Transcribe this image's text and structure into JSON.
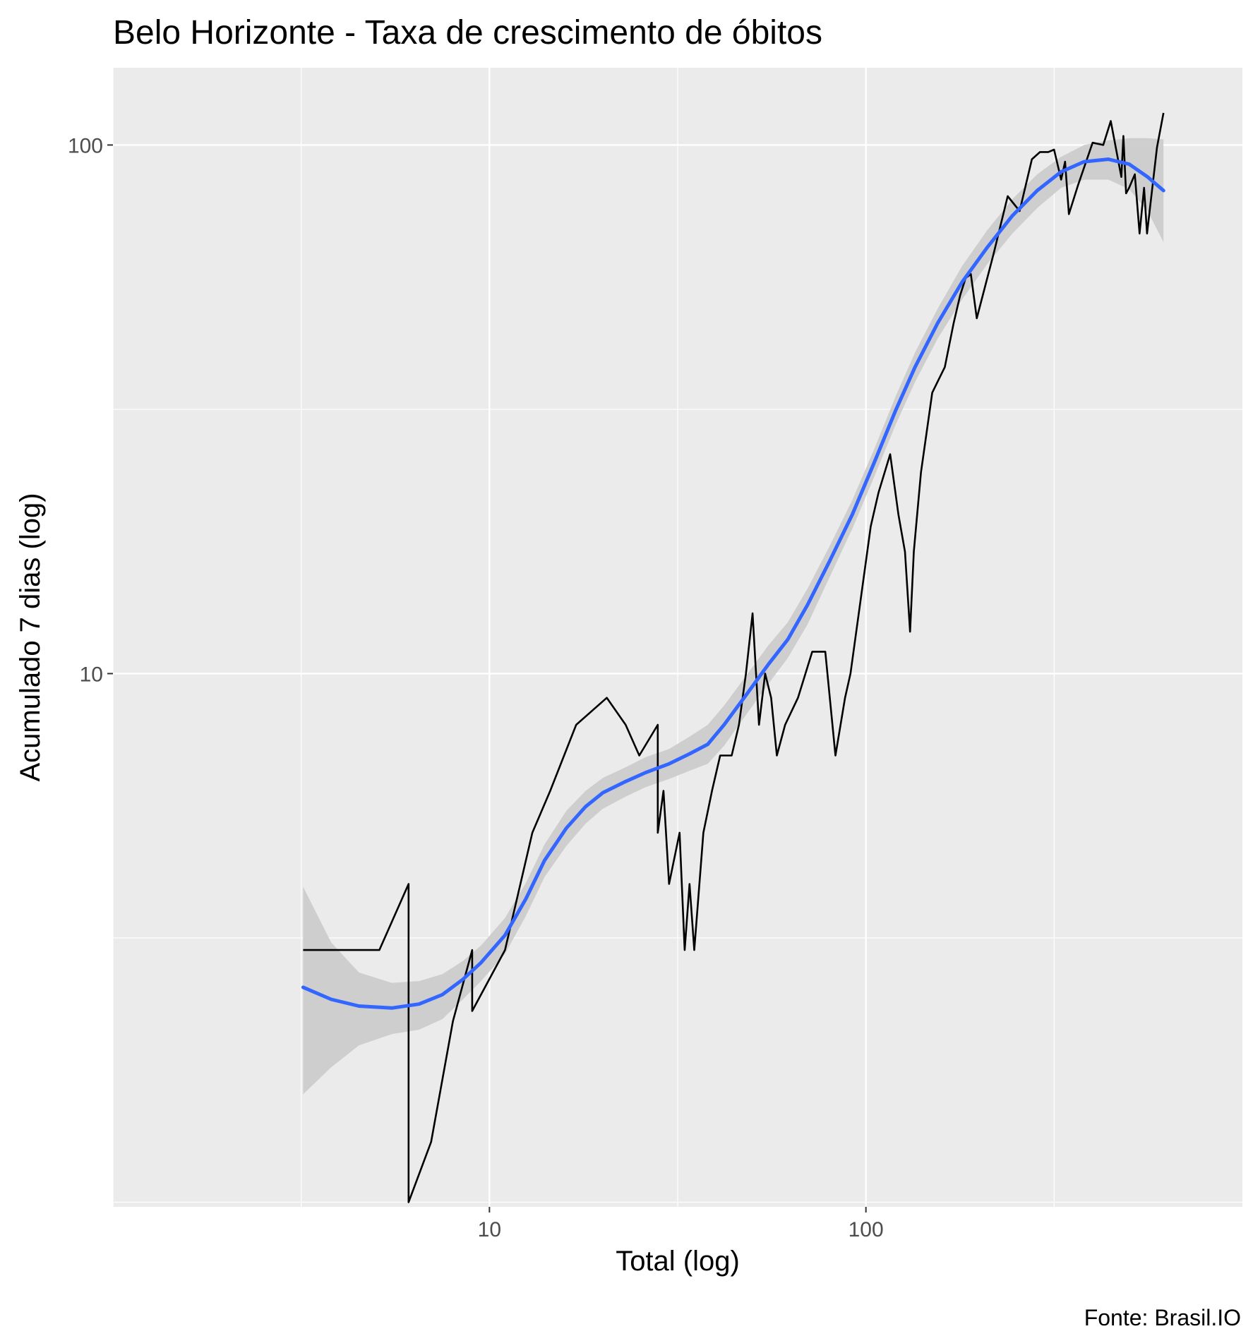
{
  "chart_data": {
    "type": "line",
    "title": "Belo Horizonte - Taxa de crescimento de óbitos",
    "xlabel": "Total (log)",
    "ylabel": "Acumulado 7 dias (log)",
    "caption": "Fonte: Brasil.IO",
    "x_scale": "log10",
    "y_scale": "log10",
    "xlim": [
      1,
      1000
    ],
    "ylim": [
      0.98,
      140
    ],
    "x_ticks": [
      {
        "value": 10,
        "label": "10"
      },
      {
        "value": 100,
        "label": "100"
      }
    ],
    "y_ticks": [
      {
        "value": 10,
        "label": "10"
      },
      {
        "value": 100,
        "label": "100"
      }
    ],
    "grid": true,
    "background": "#ebebeb",
    "series": [
      {
        "kind": "observed",
        "color": "#000000",
        "points": [
          [
            3.2,
            3
          ],
          [
            4,
            3
          ],
          [
            5.1,
            3
          ],
          [
            6.1,
            4
          ],
          [
            6.1,
            1
          ],
          [
            7,
            1.3
          ],
          [
            8,
            2.2
          ],
          [
            9,
            3
          ],
          [
            9,
            2.3
          ],
          [
            11,
            3
          ],
          [
            13,
            5
          ],
          [
            14.5,
            6
          ],
          [
            17,
            8
          ],
          [
            20.5,
            9
          ],
          [
            23,
            8
          ],
          [
            25,
            7
          ],
          [
            28,
            8
          ],
          [
            28,
            5
          ],
          [
            29,
            6
          ],
          [
            30,
            4
          ],
          [
            32,
            5
          ],
          [
            33,
            3
          ],
          [
            34,
            4
          ],
          [
            35,
            3
          ],
          [
            37,
            5
          ],
          [
            39,
            6
          ],
          [
            41,
            7
          ],
          [
            44,
            7
          ],
          [
            46,
            8
          ],
          [
            48,
            10
          ],
          [
            50,
            13
          ],
          [
            52,
            8
          ],
          [
            54,
            10
          ],
          [
            56,
            9
          ],
          [
            58,
            7
          ],
          [
            61,
            8
          ],
          [
            66,
            9
          ],
          [
            72,
            11
          ],
          [
            78,
            11
          ],
          [
            83,
            7
          ],
          [
            88,
            9
          ],
          [
            91,
            10
          ],
          [
            103,
            19
          ],
          [
            108,
            22
          ],
          [
            116,
            26
          ],
          [
            122,
            20
          ],
          [
            127,
            17
          ],
          [
            131,
            12
          ],
          [
            134,
            17
          ],
          [
            140,
            24
          ],
          [
            150,
            34
          ],
          [
            156,
            36
          ],
          [
            162,
            38
          ],
          [
            171,
            46
          ],
          [
            178,
            52
          ],
          [
            184,
            56
          ],
          [
            190,
            57
          ],
          [
            197,
            47
          ],
          [
            218,
            62
          ],
          [
            238,
            80
          ],
          [
            256,
            75
          ],
          [
            276,
            94
          ],
          [
            290,
            97
          ],
          [
            305,
            97
          ],
          [
            316,
            98
          ],
          [
            330,
            86
          ],
          [
            338,
            93
          ],
          [
            346,
            74
          ],
          [
            366,
            84
          ],
          [
            400,
            101
          ],
          [
            427,
            100
          ],
          [
            447,
            111
          ],
          [
            477,
            87
          ],
          [
            483,
            104
          ],
          [
            491,
            81
          ],
          [
            500,
            83
          ],
          [
            518,
            88
          ],
          [
            533,
            68
          ],
          [
            548,
            83
          ],
          [
            558,
            68
          ],
          [
            593,
            99
          ],
          [
            617,
            115
          ]
        ]
      },
      {
        "kind": "smooth",
        "name": "",
        "color": "#3366ff",
        "points": [
          [
            3.2,
            2.55
          ],
          [
            3.8,
            2.42
          ],
          [
            4.5,
            2.35
          ],
          [
            5.5,
            2.33
          ],
          [
            6.5,
            2.37
          ],
          [
            7.5,
            2.47
          ],
          [
            8.5,
            2.64
          ],
          [
            9.5,
            2.84
          ],
          [
            11,
            3.2
          ],
          [
            12.5,
            3.75
          ],
          [
            14,
            4.43
          ],
          [
            16,
            5.1
          ],
          [
            18,
            5.6
          ],
          [
            20,
            5.95
          ],
          [
            23,
            6.25
          ],
          [
            26,
            6.5
          ],
          [
            30,
            6.75
          ],
          [
            34,
            7.05
          ],
          [
            38,
            7.35
          ],
          [
            42,
            8.0
          ],
          [
            48,
            9.1
          ],
          [
            55,
            10.4
          ],
          [
            62,
            11.6
          ],
          [
            70,
            13.5
          ],
          [
            80,
            16.3
          ],
          [
            92,
            20.0
          ],
          [
            105,
            25
          ],
          [
            120,
            31.5
          ],
          [
            135,
            38
          ],
          [
            155,
            46
          ],
          [
            180,
            55
          ],
          [
            210,
            64
          ],
          [
            245,
            73.5
          ],
          [
            285,
            82
          ],
          [
            330,
            89
          ],
          [
            380,
            93
          ],
          [
            440,
            94
          ],
          [
            500,
            92
          ],
          [
            560,
            87
          ],
          [
            617,
            82
          ]
        ]
      },
      {
        "kind": "confidence_band",
        "color": "#cccccc",
        "points": [
          [
            3.2,
            3.95,
            1.6
          ],
          [
            3.8,
            3.1,
            1.8
          ],
          [
            4.5,
            2.72,
            1.98
          ],
          [
            5.5,
            2.6,
            2.08
          ],
          [
            6.5,
            2.62,
            2.12
          ],
          [
            7.5,
            2.7,
            2.22
          ],
          [
            8.5,
            2.86,
            2.42
          ],
          [
            9.5,
            3.06,
            2.62
          ],
          [
            11,
            3.45,
            2.95
          ],
          [
            12.5,
            4.02,
            3.48
          ],
          [
            14,
            4.75,
            4.12
          ],
          [
            16,
            5.5,
            4.72
          ],
          [
            18,
            6.0,
            5.2
          ],
          [
            20,
            6.35,
            5.55
          ],
          [
            23,
            6.65,
            5.85
          ],
          [
            26,
            6.95,
            6.1
          ],
          [
            30,
            7.2,
            6.32
          ],
          [
            34,
            7.6,
            6.55
          ],
          [
            38,
            8.0,
            6.75
          ],
          [
            42,
            8.7,
            7.3
          ],
          [
            48,
            9.9,
            8.35
          ],
          [
            55,
            11.3,
            9.55
          ],
          [
            62,
            12.5,
            10.7
          ],
          [
            70,
            14.5,
            12.4
          ],
          [
            80,
            17.4,
            15.2
          ],
          [
            92,
            21.3,
            18.8
          ],
          [
            105,
            26.5,
            23.5
          ],
          [
            120,
            33.5,
            29.6
          ],
          [
            135,
            40.5,
            35.6
          ],
          [
            155,
            49,
            43
          ],
          [
            180,
            59,
            51
          ],
          [
            210,
            69,
            59.5
          ],
          [
            245,
            79,
            68
          ],
          [
            285,
            88,
            76
          ],
          [
            330,
            95,
            83
          ],
          [
            380,
            100,
            86
          ],
          [
            440,
            102,
            86
          ],
          [
            500,
            103,
            82.5
          ],
          [
            560,
            103,
            75
          ],
          [
            617,
            102.5,
            65.5
          ]
        ]
      }
    ]
  }
}
